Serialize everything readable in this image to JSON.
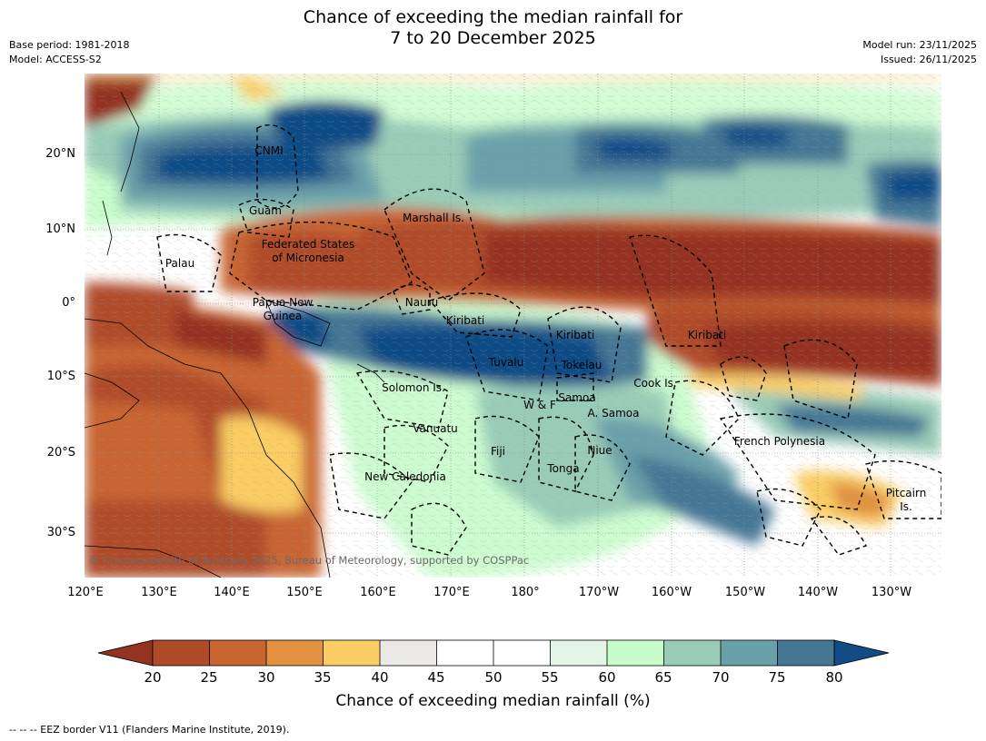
{
  "title": {
    "line1": "Chance of exceeding the median rainfall for",
    "line2": "7 to 20 December 2025"
  },
  "meta": {
    "base_period": "Base period: 1981-2018",
    "model": "Model: ACCESS-S2",
    "model_run": "Model run: 23/11/2025",
    "issued": "Issued: 26/11/2025"
  },
  "map": {
    "longitude_ticks": [
      "120°E",
      "130°E",
      "140°E",
      "150°E",
      "160°E",
      "170°E",
      "180°",
      "170°W",
      "160°W",
      "150°W",
      "140°W",
      "130°W"
    ],
    "latitude_ticks": [
      "20°N",
      "10°N",
      "0°",
      "10°S",
      "20°S",
      "30°S"
    ],
    "region_labels": {
      "cnmi": "CNMI",
      "guam": "Guam",
      "marshall": "Marshall Is.",
      "fsm_1": "Federated States",
      "fsm_2": "of Micronesia",
      "palau": "Palau",
      "png_1": "Papua New",
      "png_2": "Guinea",
      "nauru": "Nauru",
      "kiribati_w": "Kiribati",
      "kiribati_c": "Kiribati",
      "kiribati_e": "Kiribati",
      "tuvalu": "Tuvalu",
      "tokelau": "Tokelau",
      "cook": "Cook Is.",
      "solomon": "Solomon Is.",
      "wf": "W & F",
      "samoa": "Samoa",
      "asamoa": "A. Samoa",
      "vanuatu": "Vanuatu",
      "fiji": "Fiji",
      "niue": "Niue",
      "tonga": "Tonga",
      "frpoly": "French Polynesia",
      "newcal": "New Caledonia",
      "pitcairn_1": "Pitcairn",
      "pitcairn_2": "Is."
    },
    "copyright": "© Commonwealth of Australia 2025, Bureau of Meteorology, supported by COSPPac"
  },
  "colorbar": {
    "ticks": [
      "20",
      "25",
      "30",
      "35",
      "40",
      "45",
      "50",
      "55",
      "60",
      "65",
      "70",
      "75",
      "80"
    ],
    "colors": {
      "under": "#943320",
      "c20_25": "#b04b2a",
      "c25_30": "#c96531",
      "c30_35": "#e1913f",
      "c35_40": "#fbcd63",
      "c40_45": "#ebe9e5",
      "c45_50": "#ffffff",
      "c50_55": "#ffffff",
      "c55_60": "#e5f5e5",
      "c60_65": "#c8fccb",
      "c65_70": "#99ccb8",
      "c70_75": "#6aa0aa",
      "c75_80": "#457794",
      "over": "#114c86"
    },
    "label": "Chance of exceeding median rainfall (%)"
  },
  "footer": "--  --  -- EEZ border V11 (Flanders Marine Institute, 2019)."
}
